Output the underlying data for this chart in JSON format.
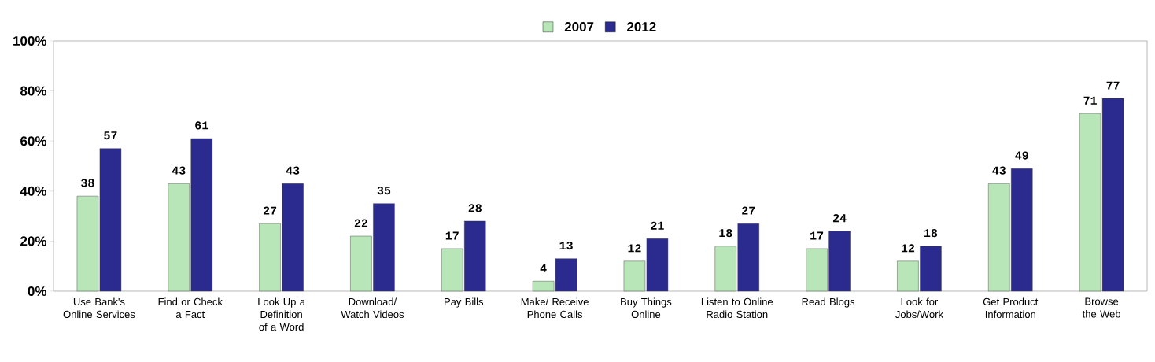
{
  "chart_data": {
    "type": "bar",
    "categories": [
      "Use Bank's Online Services",
      "Find or Check a Fact",
      "Look Up a Definition of a Word",
      "Download/ Watch Videos",
      "Pay Bills",
      "Make/ Receive Phone Calls",
      "Buy Things Online",
      "Listen to Online Radio Station",
      "Read Blogs",
      "Look for Jobs/Work",
      "Get Product Information",
      "Browse the Web"
    ],
    "series": [
      {
        "name": "2007",
        "color": "#b8e6b8",
        "values": [
          38,
          43,
          27,
          22,
          17,
          4,
          12,
          18,
          17,
          12,
          43,
          71
        ]
      },
      {
        "name": "2012",
        "color": "#2b2b8f",
        "values": [
          57,
          61,
          43,
          35,
          28,
          13,
          21,
          27,
          24,
          18,
          49,
          77
        ]
      }
    ],
    "ylim": [
      0,
      100
    ],
    "yticks": [
      {
        "value": 0,
        "label": "0%"
      },
      {
        "value": 20,
        "label": "20%"
      },
      {
        "value": 40,
        "label": "40%"
      },
      {
        "value": 60,
        "label": "60%"
      },
      {
        "value": 80,
        "label": "80%"
      },
      {
        "value": 100,
        "label": "100%"
      }
    ],
    "data_labels": true,
    "legend": "top",
    "grid": false
  }
}
